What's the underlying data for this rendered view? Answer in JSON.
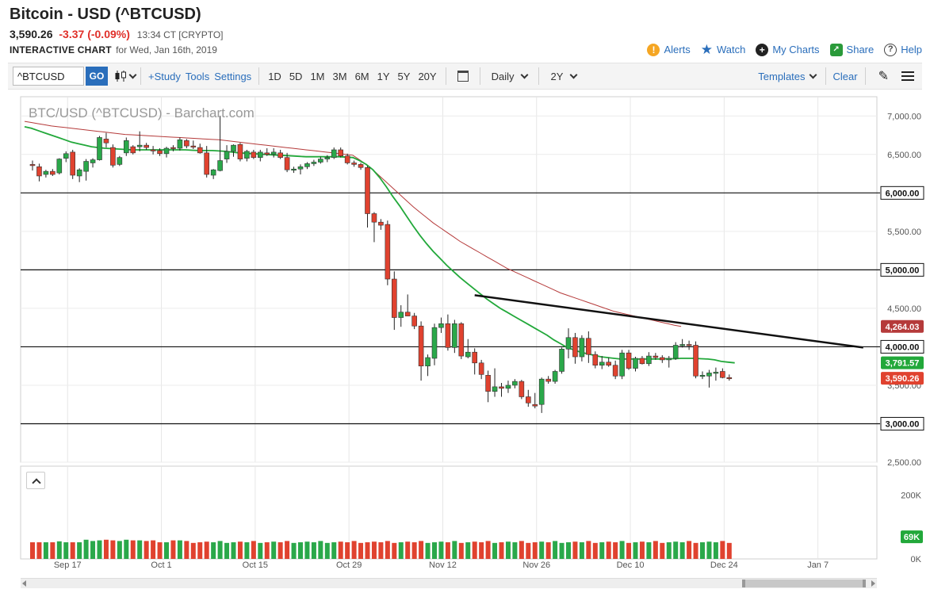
{
  "header": {
    "title": "Bitcoin - USD (^BTCUSD)",
    "price": "3,590.26",
    "change": "-3.37 (-0.09%)",
    "time": "13:34 CT [CRYPTO]",
    "chart_label": "INTERACTIVE CHART",
    "chart_date": "for Wed, Jan 16th, 2019"
  },
  "top_links": {
    "alerts": "Alerts",
    "watch": "Watch",
    "my_charts": "My Charts",
    "share": "Share",
    "help": "Help"
  },
  "toolbar": {
    "symbol": "^BTCUSD",
    "go": "GO",
    "study": "+Study",
    "tools": "Tools",
    "settings": "Settings",
    "periods": [
      "1D",
      "5D",
      "1M",
      "3M",
      "6M",
      "1Y",
      "5Y",
      "20Y"
    ],
    "interval": "Daily",
    "range": "2Y",
    "templates": "Templates",
    "clear": "Clear"
  },
  "colors": {
    "up": "#2aa84a",
    "down": "#e0422f",
    "ma_fast": "#22a83a",
    "ma_slow": "#b53a3a",
    "price_tag": "#e0422f",
    "ma_fast_tag": "#22a83a",
    "ma_slow_tag": "#b53a3a"
  },
  "chart_data": {
    "type": "candlestick",
    "title": "BTC/USD (^BTCUSD) - Barchart.com",
    "x_ticks": [
      "Sep 17",
      "Oct 1",
      "Oct 15",
      "Oct 29",
      "Nov 12",
      "Nov 26",
      "Dec 10",
      "Dec 24",
      "Jan 7"
    ],
    "x_tick_index": [
      5,
      19,
      33,
      47,
      61,
      75,
      89,
      103,
      117
    ],
    "y_ticks": [
      2500,
      3000,
      3500,
      4000,
      4500,
      5000,
      5500,
      6000,
      6500,
      7000
    ],
    "y_tick_labels": [
      "2,500.00",
      "3,000.00",
      "3,500.00",
      "4,000.00",
      "4,500.00",
      "5,000.00",
      "5,500.00",
      "6,000.00",
      "6,500.00",
      "7,000.00"
    ],
    "ylim": [
      2500,
      7250
    ],
    "horizontal_levels": [
      {
        "value": 3000,
        "label": "3,000.00"
      },
      {
        "value": 4000,
        "label": "4,000.00"
      },
      {
        "value": 5000,
        "label": "5,000.00"
      },
      {
        "value": 6000,
        "label": "6,000.00"
      }
    ],
    "price_tags": [
      {
        "value": 4264.03,
        "label": "4,264.03",
        "kind": "ma_slow"
      },
      {
        "value": 3791.57,
        "label": "3,791.57",
        "kind": "ma_fast"
      },
      {
        "value": 3590.26,
        "label": "3,590.26",
        "kind": "price"
      }
    ],
    "trendline": {
      "start_index": 66,
      "start_value": 4670,
      "end_index": 124,
      "end_value": 3990
    },
    "candles": [
      {
        "o": 6370,
        "h": 6420,
        "l": 6290,
        "c": 6360
      },
      {
        "o": 6340,
        "h": 6380,
        "l": 6150,
        "c": 6220
      },
      {
        "o": 6240,
        "h": 6300,
        "l": 6200,
        "c": 6280
      },
      {
        "o": 6280,
        "h": 6310,
        "l": 6220,
        "c": 6240
      },
      {
        "o": 6260,
        "h": 6450,
        "l": 6240,
        "c": 6440
      },
      {
        "o": 6450,
        "h": 6540,
        "l": 6400,
        "c": 6510
      },
      {
        "o": 6530,
        "h": 6560,
        "l": 6180,
        "c": 6230
      },
      {
        "o": 6220,
        "h": 6320,
        "l": 6140,
        "c": 6300
      },
      {
        "o": 6280,
        "h": 6440,
        "l": 6160,
        "c": 6410
      },
      {
        "o": 6390,
        "h": 6450,
        "l": 6330,
        "c": 6430
      },
      {
        "o": 6430,
        "h": 6740,
        "l": 6420,
        "c": 6720
      },
      {
        "o": 6700,
        "h": 6780,
        "l": 6590,
        "c": 6650
      },
      {
        "o": 6590,
        "h": 6630,
        "l": 6330,
        "c": 6360
      },
      {
        "o": 6370,
        "h": 6480,
        "l": 6350,
        "c": 6460
      },
      {
        "o": 6520,
        "h": 6720,
        "l": 6480,
        "c": 6680
      },
      {
        "o": 6600,
        "h": 6620,
        "l": 6500,
        "c": 6520
      },
      {
        "o": 6600,
        "h": 6800,
        "l": 6540,
        "c": 6620
      },
      {
        "o": 6620,
        "h": 6650,
        "l": 6560,
        "c": 6590
      },
      {
        "o": 6560,
        "h": 6610,
        "l": 6500,
        "c": 6550
      },
      {
        "o": 6550,
        "h": 6580,
        "l": 6480,
        "c": 6510
      },
      {
        "o": 6510,
        "h": 6600,
        "l": 6460,
        "c": 6580
      },
      {
        "o": 6590,
        "h": 6620,
        "l": 6540,
        "c": 6580
      },
      {
        "o": 6580,
        "h": 6720,
        "l": 6550,
        "c": 6690
      },
      {
        "o": 6680,
        "h": 6700,
        "l": 6580,
        "c": 6610
      },
      {
        "o": 6610,
        "h": 6680,
        "l": 6570,
        "c": 6600
      },
      {
        "o": 6590,
        "h": 6640,
        "l": 6510,
        "c": 6520
      },
      {
        "o": 6520,
        "h": 6610,
        "l": 6200,
        "c": 6240
      },
      {
        "o": 6230,
        "h": 6310,
        "l": 6180,
        "c": 6300
      },
      {
        "o": 6290,
        "h": 7000,
        "l": 6280,
        "c": 6420
      },
      {
        "o": 6440,
        "h": 6620,
        "l": 6390,
        "c": 6540
      },
      {
        "o": 6540,
        "h": 6630,
        "l": 6470,
        "c": 6620
      },
      {
        "o": 6630,
        "h": 6650,
        "l": 6410,
        "c": 6440
      },
      {
        "o": 6450,
        "h": 6560,
        "l": 6410,
        "c": 6540
      },
      {
        "o": 6530,
        "h": 6560,
        "l": 6440,
        "c": 6460
      },
      {
        "o": 6460,
        "h": 6560,
        "l": 6410,
        "c": 6530
      },
      {
        "o": 6520,
        "h": 6580,
        "l": 6480,
        "c": 6500
      },
      {
        "o": 6500,
        "h": 6580,
        "l": 6460,
        "c": 6530
      },
      {
        "o": 6520,
        "h": 6560,
        "l": 6440,
        "c": 6460
      },
      {
        "o": 6460,
        "h": 6520,
        "l": 6270,
        "c": 6300
      },
      {
        "o": 6300,
        "h": 6340,
        "l": 6260,
        "c": 6310
      },
      {
        "o": 6310,
        "h": 6370,
        "l": 6240,
        "c": 6340
      },
      {
        "o": 6340,
        "h": 6400,
        "l": 6310,
        "c": 6380
      },
      {
        "o": 6380,
        "h": 6430,
        "l": 6350,
        "c": 6400
      },
      {
        "o": 6400,
        "h": 6470,
        "l": 6380,
        "c": 6440
      },
      {
        "o": 6440,
        "h": 6490,
        "l": 6400,
        "c": 6460
      },
      {
        "o": 6460,
        "h": 6590,
        "l": 6440,
        "c": 6560
      },
      {
        "o": 6560,
        "h": 6590,
        "l": 6460,
        "c": 6480
      },
      {
        "o": 6480,
        "h": 6510,
        "l": 6370,
        "c": 6390
      },
      {
        "o": 6390,
        "h": 6420,
        "l": 6340,
        "c": 6370
      },
      {
        "o": 6370,
        "h": 6390,
        "l": 6300,
        "c": 6330
      },
      {
        "o": 6330,
        "h": 6350,
        "l": 5550,
        "c": 5730
      },
      {
        "o": 5730,
        "h": 5750,
        "l": 5360,
        "c": 5620
      },
      {
        "o": 5620,
        "h": 5660,
        "l": 5520,
        "c": 5580
      },
      {
        "o": 5590,
        "h": 5640,
        "l": 4800,
        "c": 4880
      },
      {
        "o": 4880,
        "h": 4980,
        "l": 4220,
        "c": 4380
      },
      {
        "o": 4380,
        "h": 4540,
        "l": 4260,
        "c": 4450
      },
      {
        "o": 4450,
        "h": 4680,
        "l": 4400,
        "c": 4400
      },
      {
        "o": 4400,
        "h": 4440,
        "l": 4230,
        "c": 4270
      },
      {
        "o": 4270,
        "h": 4330,
        "l": 3560,
        "c": 3750
      },
      {
        "o": 3750,
        "h": 3900,
        "l": 3620,
        "c": 3860
      },
      {
        "o": 3850,
        "h": 4300,
        "l": 3760,
        "c": 4250
      },
      {
        "o": 4250,
        "h": 4380,
        "l": 4180,
        "c": 4300
      },
      {
        "o": 4300,
        "h": 4420,
        "l": 3950,
        "c": 3990
      },
      {
        "o": 3990,
        "h": 4350,
        "l": 3920,
        "c": 4300
      },
      {
        "o": 4300,
        "h": 4320,
        "l": 3840,
        "c": 3880
      },
      {
        "o": 3870,
        "h": 4100,
        "l": 3850,
        "c": 3930
      },
      {
        "o": 3930,
        "h": 3980,
        "l": 3640,
        "c": 3790
      },
      {
        "o": 3790,
        "h": 3830,
        "l": 3580,
        "c": 3640
      },
      {
        "o": 3630,
        "h": 3690,
        "l": 3280,
        "c": 3420
      },
      {
        "o": 3420,
        "h": 3720,
        "l": 3350,
        "c": 3480
      },
      {
        "o": 3480,
        "h": 3530,
        "l": 3350,
        "c": 3460
      },
      {
        "o": 3460,
        "h": 3560,
        "l": 3400,
        "c": 3500
      },
      {
        "o": 3500,
        "h": 3580,
        "l": 3460,
        "c": 3550
      },
      {
        "o": 3550,
        "h": 3570,
        "l": 3320,
        "c": 3350
      },
      {
        "o": 3350,
        "h": 3440,
        "l": 3220,
        "c": 3270
      },
      {
        "o": 3250,
        "h": 3400,
        "l": 3200,
        "c": 3230
      },
      {
        "o": 3250,
        "h": 3600,
        "l": 3140,
        "c": 3580
      },
      {
        "o": 3580,
        "h": 3620,
        "l": 3520,
        "c": 3550
      },
      {
        "o": 3550,
        "h": 3700,
        "l": 3520,
        "c": 3680
      },
      {
        "o": 3680,
        "h": 3990,
        "l": 3650,
        "c": 3970
      },
      {
        "o": 3970,
        "h": 4240,
        "l": 3850,
        "c": 4120
      },
      {
        "o": 4120,
        "h": 4180,
        "l": 3780,
        "c": 3870
      },
      {
        "o": 3870,
        "h": 4150,
        "l": 3810,
        "c": 4110
      },
      {
        "o": 4110,
        "h": 4200,
        "l": 3790,
        "c": 3900
      },
      {
        "o": 3900,
        "h": 3940,
        "l": 3720,
        "c": 3760
      },
      {
        "o": 3760,
        "h": 3880,
        "l": 3710,
        "c": 3800
      },
      {
        "o": 3800,
        "h": 3860,
        "l": 3740,
        "c": 3760
      },
      {
        "o": 3760,
        "h": 3820,
        "l": 3580,
        "c": 3620
      },
      {
        "o": 3620,
        "h": 3960,
        "l": 3580,
        "c": 3920
      },
      {
        "o": 3920,
        "h": 3960,
        "l": 3700,
        "c": 3720
      },
      {
        "o": 3720,
        "h": 3870,
        "l": 3680,
        "c": 3850
      },
      {
        "o": 3850,
        "h": 3880,
        "l": 3770,
        "c": 3780
      },
      {
        "o": 3780,
        "h": 3930,
        "l": 3750,
        "c": 3880
      },
      {
        "o": 3880,
        "h": 3920,
        "l": 3830,
        "c": 3860
      },
      {
        "o": 3860,
        "h": 3890,
        "l": 3790,
        "c": 3830
      },
      {
        "o": 3830,
        "h": 3880,
        "l": 3730,
        "c": 3850
      },
      {
        "o": 3850,
        "h": 4060,
        "l": 3830,
        "c": 4020
      },
      {
        "o": 4020,
        "h": 4100,
        "l": 3990,
        "c": 4030
      },
      {
        "o": 4030,
        "h": 4080,
        "l": 3960,
        "c": 4020
      },
      {
        "o": 4020,
        "h": 4070,
        "l": 3590,
        "c": 3620
      },
      {
        "o": 3620,
        "h": 3680,
        "l": 3580,
        "c": 3630
      },
      {
        "o": 3620,
        "h": 3700,
        "l": 3470,
        "c": 3660
      },
      {
        "o": 3660,
        "h": 3730,
        "l": 3560,
        "c": 3670
      },
      {
        "o": 3680,
        "h": 3720,
        "l": 3590,
        "c": 3600
      },
      {
        "o": 3600,
        "h": 3640,
        "l": 3560,
        "c": 3590
      }
    ],
    "ma_fast": [
      6860,
      6840,
      6810,
      6780,
      6750,
      6720,
      6690,
      6660,
      6640,
      6620,
      6600,
      6590,
      6580,
      6575,
      6570,
      6565,
      6560,
      6560,
      6560,
      6560,
      6560,
      6560,
      6560,
      6560,
      6560,
      6555,
      6550,
      6550,
      6550,
      6545,
      6540,
      6530,
      6520,
      6515,
      6510,
      6505,
      6500,
      6495,
      6490,
      6485,
      6480,
      6475,
      6470,
      6470,
      6470,
      6470,
      6470,
      6470,
      6465,
      6460,
      6420,
      6370,
      6300,
      6200,
      6080,
      5950,
      5830,
      5700,
      5570,
      5450,
      5340,
      5240,
      5150,
      5060,
      4980,
      4900,
      4830,
      4760,
      4690,
      4620,
      4560,
      4500,
      4450,
      4400,
      4350,
      4300,
      4250,
      4200,
      4150,
      4090,
      4040,
      3990,
      3960,
      3930,
      3910,
      3890,
      3870,
      3860,
      3850,
      3840,
      3840,
      3840,
      3840,
      3840,
      3840,
      3840,
      3845,
      3845,
      3850,
      3850,
      3850,
      3845,
      3840,
      3830,
      3810,
      3800,
      3791
    ],
    "ma_slow": [
      6930,
      6915,
      6900,
      6885,
      6870,
      6860,
      6850,
      6840,
      6830,
      6820,
      6810,
      6800,
      6790,
      6780,
      6770,
      6760,
      6755,
      6750,
      6745,
      6740,
      6735,
      6730,
      6725,
      6720,
      6715,
      6710,
      6705,
      6700,
      6695,
      6690,
      6680,
      6670,
      6660,
      6650,
      6640,
      6630,
      6620,
      6610,
      6600,
      6590,
      6580,
      6570,
      6560,
      6550,
      6540,
      6530,
      6520,
      6510,
      6500,
      6490,
      6430,
      6370,
      6300,
      6220,
      6140,
      6060,
      5980,
      5900,
      5820,
      5750,
      5680,
      5610,
      5550,
      5490,
      5430,
      5370,
      5320,
      5270,
      5220,
      5170,
      5120,
      5070,
      5020,
      4980,
      4940,
      4900,
      4860,
      4820,
      4780,
      4740,
      4700,
      4670,
      4640,
      4610,
      4580,
      4550,
      4520,
      4490,
      4460,
      4440,
      4420,
      4400,
      4380,
      4360,
      4340,
      4320,
      4300,
      4280,
      4264
    ],
    "volumes": [
      52,
      52,
      52,
      52,
      55,
      52,
      52,
      52,
      60,
      56,
      58,
      60,
      58,
      56,
      60,
      58,
      58,
      56,
      58,
      52,
      52,
      58,
      58,
      56,
      50,
      52,
      54,
      52,
      56,
      50,
      52,
      54,
      52,
      56,
      50,
      52,
      54,
      52,
      56,
      50,
      52,
      54,
      52,
      56,
      50,
      52,
      54,
      52,
      56,
      50,
      52,
      54,
      52,
      56,
      50,
      52,
      54,
      52,
      56,
      50,
      52,
      54,
      52,
      56,
      50,
      52,
      54,
      52,
      56,
      50,
      52,
      54,
      52,
      56,
      50,
      52,
      54,
      52,
      56,
      50,
      52,
      54,
      52,
      56,
      50,
      52,
      54,
      52,
      56,
      50,
      52,
      54,
      52,
      56,
      50,
      52,
      54,
      52,
      56,
      50,
      52,
      54,
      52,
      56,
      50,
      52,
      54
    ],
    "volume_axis": {
      "ticks": [
        {
          "value": 200,
          "label": "200K"
        },
        {
          "value": 0,
          "label": "0K"
        }
      ],
      "current_label": "69K"
    }
  }
}
